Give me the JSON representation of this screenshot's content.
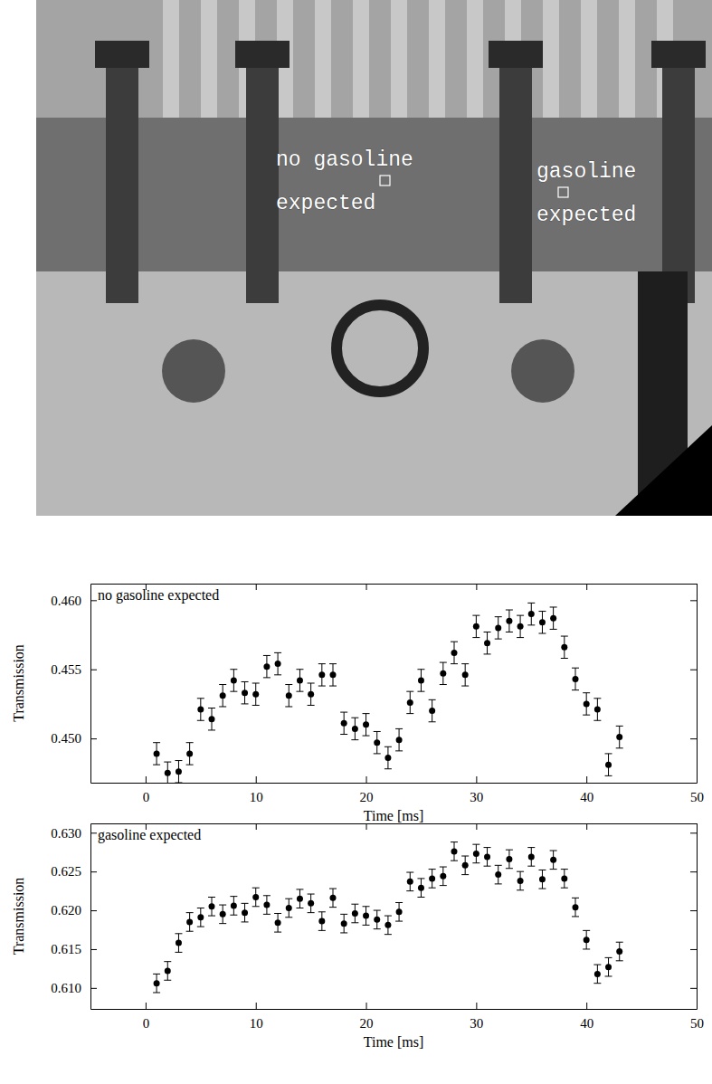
{
  "image": {
    "annotations": [
      {
        "lines": [
          "no gasoline",
          "expected"
        ]
      },
      {
        "lines": [
          "gasoline",
          "expected"
        ]
      }
    ]
  },
  "chart_data": [
    {
      "type": "scatter",
      "title": "no gasoline expected",
      "x_label": "Time [ms]",
      "y_label": "Transmission",
      "color": "#000000",
      "marker": "circle",
      "xlim": [
        -5,
        50
      ],
      "xticks": [
        0,
        10,
        20,
        30,
        40,
        50
      ],
      "ylim": [
        0.4468,
        0.4612
      ],
      "yticks": [
        {
          "value": 0.45,
          "label": "0.450"
        },
        0.455,
        {
          "value": 0.46,
          "label": "0.460"
        }
      ],
      "x": [
        1,
        2,
        3,
        4,
        5,
        6,
        7,
        8,
        9,
        10,
        11,
        12,
        13,
        14,
        15,
        16,
        17,
        18,
        19,
        20,
        21,
        22,
        23,
        24,
        25,
        26,
        27,
        28,
        29,
        30,
        31,
        32,
        33,
        34,
        35,
        36,
        37,
        38,
        39,
        40,
        41,
        42,
        43
      ],
      "values": [
        0.4489,
        0.4475,
        0.4476,
        0.4489,
        0.4521,
        0.4514,
        0.4531,
        0.4542,
        0.4533,
        0.4532,
        0.4552,
        0.4554,
        0.4531,
        0.4542,
        0.4532,
        0.4546,
        0.4546,
        0.4511,
        0.4507,
        0.451,
        0.4497,
        0.4486,
        0.4499,
        0.4526,
        0.4542,
        0.452,
        0.4547,
        0.4562,
        0.4546,
        0.4581,
        0.4569,
        0.458,
        0.4585,
        0.4581,
        0.459,
        0.4584,
        0.4587,
        0.4566,
        0.4543,
        0.4525,
        0.4521,
        0.4481,
        0.4501
      ],
      "errors": [
        0.0008,
        0.0008,
        0.0008,
        0.0008,
        0.0008,
        0.0008,
        0.0008,
        0.0008,
        0.0008,
        0.0008,
        0.0008,
        0.0008,
        0.0008,
        0.0008,
        0.0008,
        0.0008,
        0.0008,
        0.0008,
        0.0008,
        0.0008,
        0.0008,
        0.0008,
        0.0008,
        0.0008,
        0.0008,
        0.0008,
        0.0008,
        0.0008,
        0.0008,
        0.0008,
        0.0008,
        0.0008,
        0.0008,
        0.0008,
        0.0008,
        0.0008,
        0.0008,
        0.0008,
        0.0008,
        0.0008,
        0.0008,
        0.0008,
        0.0008
      ]
    },
    {
      "type": "scatter",
      "title": "gasoline expected",
      "x_label": "Time [ms]",
      "y_label": "Transmission",
      "color": "#000000",
      "marker": "circle",
      "xlim": [
        -5,
        50
      ],
      "xticks": [
        0,
        10,
        20,
        30,
        40,
        50
      ],
      "ylim": [
        0.6073,
        0.6312
      ],
      "yticks": [
        {
          "value": 0.61,
          "label": "0.610"
        },
        0.615,
        {
          "value": 0.62,
          "label": "0.620"
        },
        0.625,
        {
          "value": 0.63,
          "label": "0.630"
        }
      ],
      "x": [
        1,
        2,
        3,
        4,
        5,
        6,
        7,
        8,
        9,
        10,
        11,
        12,
        13,
        14,
        15,
        16,
        17,
        18,
        19,
        20,
        21,
        22,
        23,
        24,
        25,
        26,
        27,
        28,
        29,
        30,
        31,
        32,
        33,
        34,
        35,
        36,
        37,
        38,
        39,
        40,
        41,
        42,
        43
      ],
      "values": [
        0.6106,
        0.6122,
        0.6158,
        0.6185,
        0.6191,
        0.6205,
        0.6195,
        0.6206,
        0.6197,
        0.6217,
        0.6207,
        0.6184,
        0.6203,
        0.6215,
        0.6209,
        0.6186,
        0.6216,
        0.6183,
        0.6196,
        0.6193,
        0.6188,
        0.6181,
        0.6198,
        0.6237,
        0.6229,
        0.6241,
        0.6244,
        0.6276,
        0.6258,
        0.6273,
        0.6269,
        0.6246,
        0.6266,
        0.6238,
        0.6269,
        0.624,
        0.6265,
        0.6241,
        0.6204,
        0.6162,
        0.6118,
        0.6127,
        0.6147
      ],
      "errors": [
        0.0012,
        0.0012,
        0.0012,
        0.0012,
        0.0012,
        0.0012,
        0.0012,
        0.0012,
        0.0012,
        0.0012,
        0.0012,
        0.0012,
        0.0012,
        0.0012,
        0.0012,
        0.0012,
        0.0012,
        0.0012,
        0.0012,
        0.0012,
        0.0012,
        0.0012,
        0.0012,
        0.0012,
        0.0012,
        0.0012,
        0.0012,
        0.0012,
        0.0012,
        0.0012,
        0.0012,
        0.0012,
        0.0012,
        0.0012,
        0.0012,
        0.0012,
        0.0012,
        0.0012,
        0.0012,
        0.0012,
        0.0012,
        0.0012,
        0.0012
      ]
    }
  ]
}
